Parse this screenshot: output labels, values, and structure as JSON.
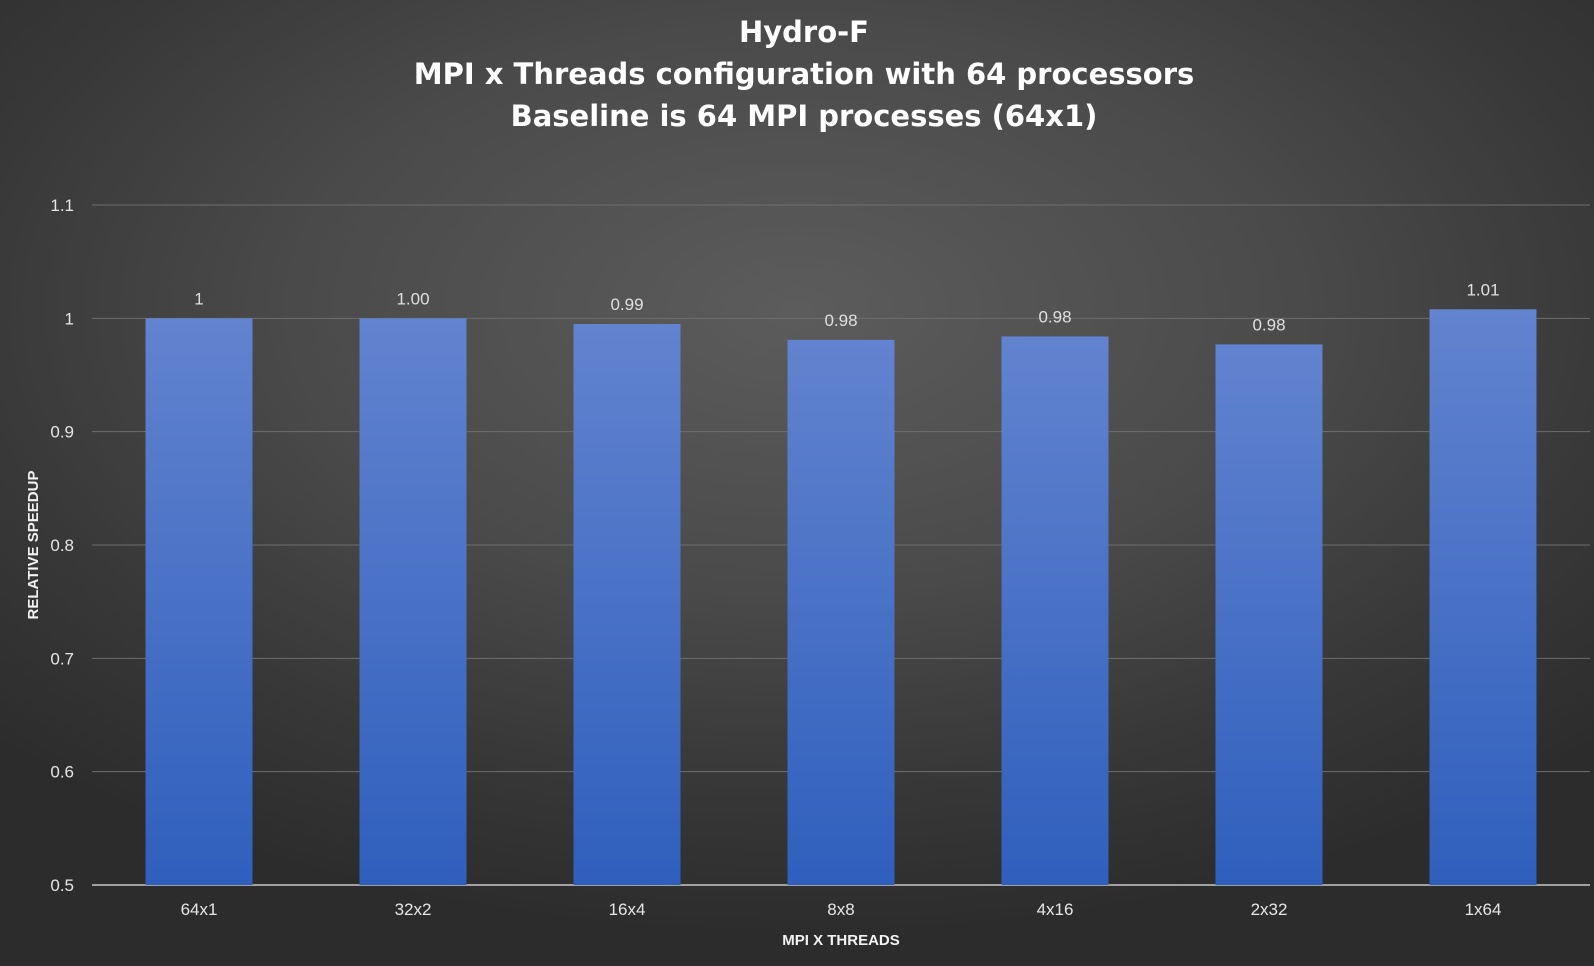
{
  "chart_data": {
    "type": "bar",
    "title": [
      "Hydro-F",
      "MPI x Threads configuration with 64 processors",
      "Baseline is 64 MPI processes (64x1)"
    ],
    "xlabel": "MPI X THREADS",
    "ylabel": "RELATIVE SPEEDUP",
    "categories": [
      "64x1",
      "32x2",
      "16x4",
      "8x8",
      "4x16",
      "2x32",
      "1x64"
    ],
    "values": [
      1.0,
      1.0,
      0.995,
      0.981,
      0.984,
      0.977,
      1.008
    ],
    "value_labels": [
      "1",
      "1.00",
      "0.99",
      "0.98",
      "0.98",
      "0.98",
      "1.01"
    ],
    "ylim": [
      0.5,
      1.1
    ],
    "yticks": [
      0.5,
      0.6,
      0.7,
      0.8,
      0.9,
      1.0,
      1.1
    ],
    "ytick_labels": [
      "0.5",
      "0.6",
      "0.7",
      "0.8",
      "0.9",
      "1",
      "1.1"
    ],
    "grid": true,
    "legend": "none",
    "colors": {
      "bar_top": "#6283cf",
      "bar_bottom": "#2f5fbd",
      "background": "#4a4a4a"
    }
  }
}
